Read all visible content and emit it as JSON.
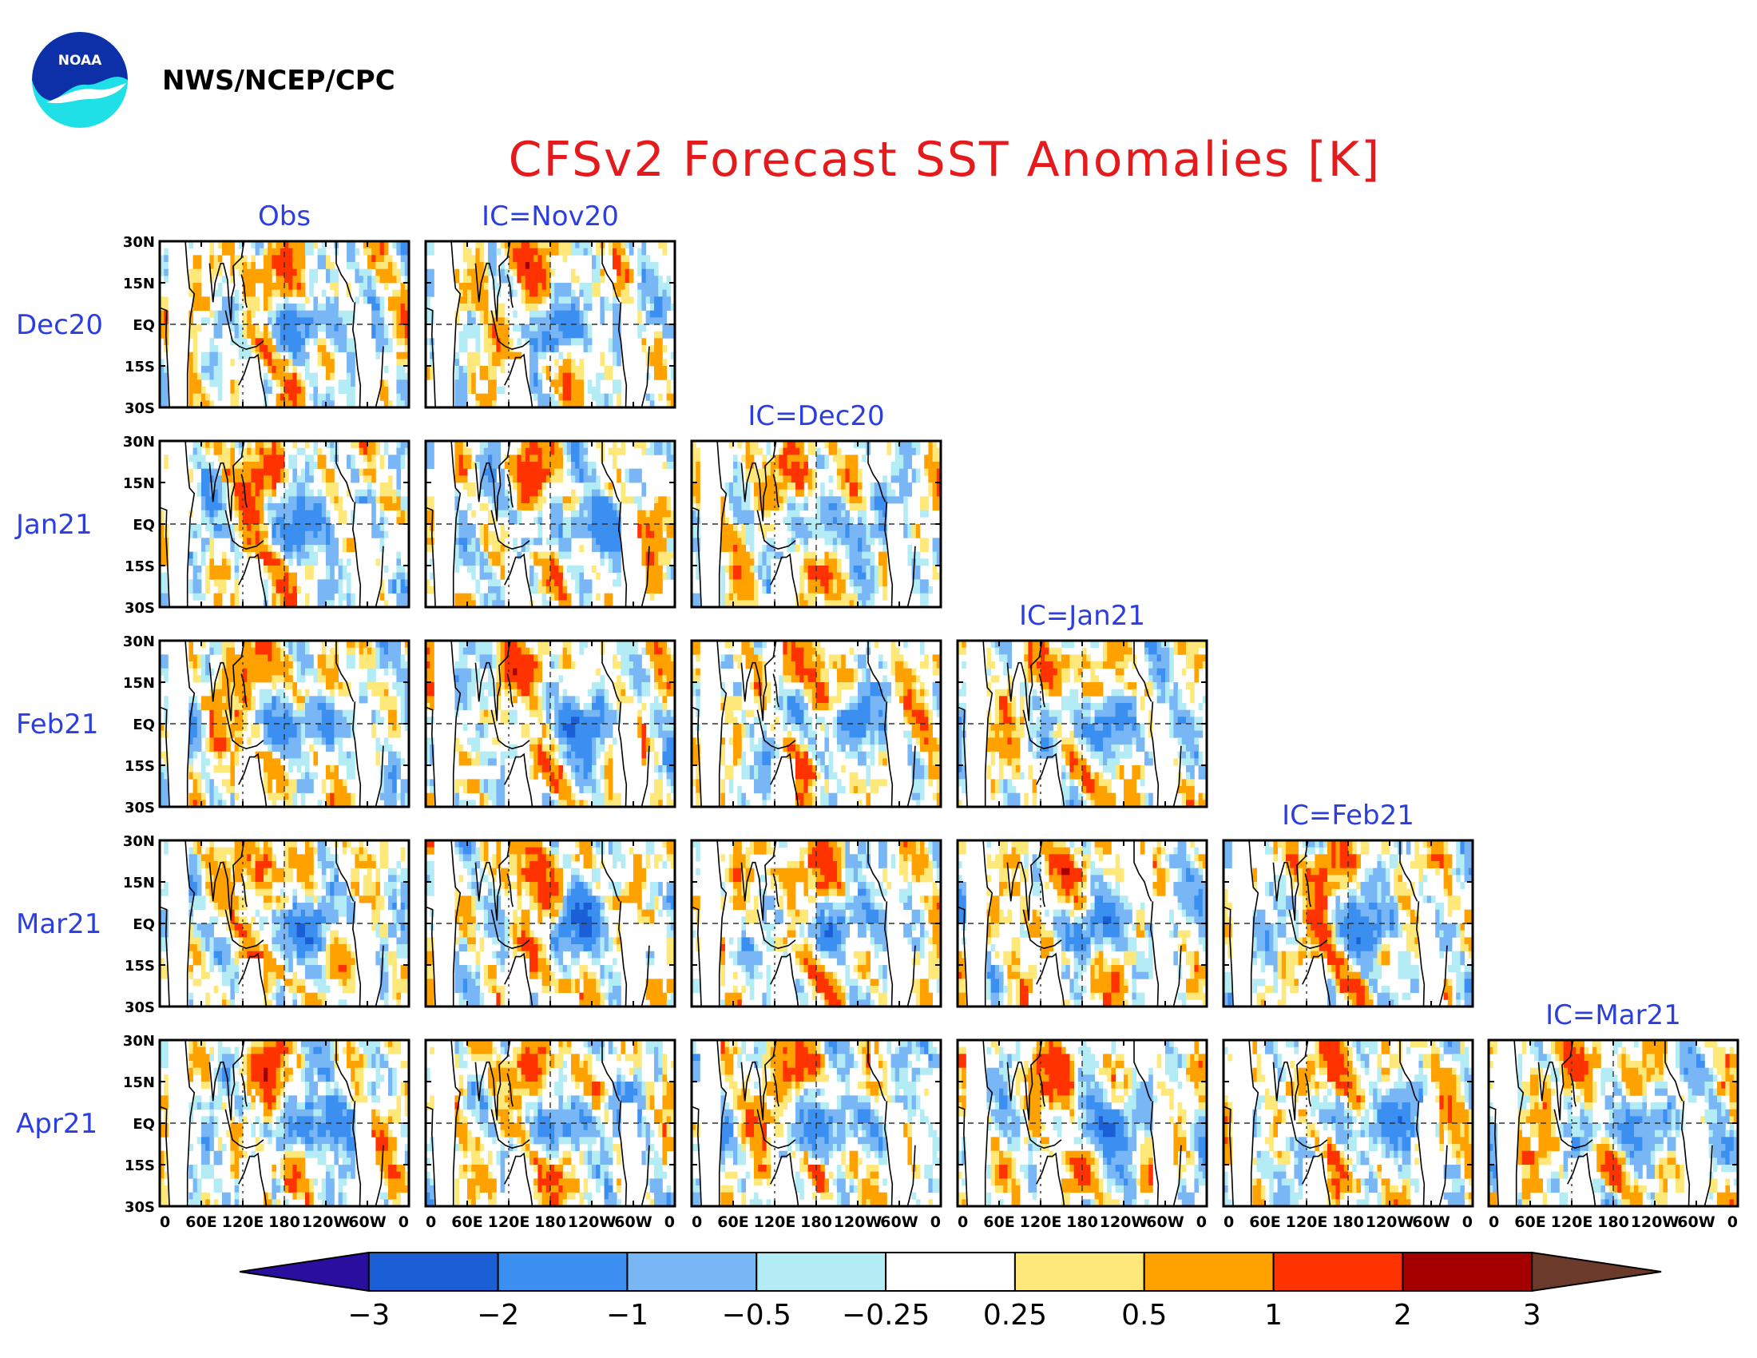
{
  "header": {
    "logo_text": "NOAA",
    "agency": "NWS/NCEP/CPC",
    "title": "CFSv2 Forecast SST Anomalies [K]"
  },
  "colors": {
    "title": "#e41a1c",
    "labels": "#2b3fe0",
    "logo_outer": "#1ee0e6",
    "logo_inner": "#0d2fa8"
  },
  "chart_data": {
    "type": "heatmap",
    "title": "CFSv2 Forecast SST Anomalies [K]",
    "variable": "SST anomaly",
    "units": "K",
    "columns": [
      "Obs",
      "IC=Nov20",
      "IC=Dec20",
      "IC=Jan21",
      "IC=Feb21",
      "IC=Mar21"
    ],
    "rows": [
      "Dec20",
      "Jan21",
      "Feb21",
      "Mar21",
      "Apr21"
    ],
    "panels": [
      {
        "row": 0,
        "col": 0,
        "id": "obs-dec20"
      },
      {
        "row": 0,
        "col": 1,
        "id": "nov20-dec20"
      },
      {
        "row": 1,
        "col": 0,
        "id": "obs-jan21"
      },
      {
        "row": 1,
        "col": 1,
        "id": "nov20-jan21"
      },
      {
        "row": 1,
        "col": 2,
        "id": "dec20-jan21"
      },
      {
        "row": 2,
        "col": 0,
        "id": "obs-feb21"
      },
      {
        "row": 2,
        "col": 1,
        "id": "nov20-feb21"
      },
      {
        "row": 2,
        "col": 2,
        "id": "dec20-feb21"
      },
      {
        "row": 2,
        "col": 3,
        "id": "jan21-feb21"
      },
      {
        "row": 3,
        "col": 0,
        "id": "obs-mar21"
      },
      {
        "row": 3,
        "col": 1,
        "id": "nov20-mar21"
      },
      {
        "row": 3,
        "col": 2,
        "id": "dec20-mar21"
      },
      {
        "row": 3,
        "col": 3,
        "id": "jan21-mar21"
      },
      {
        "row": 3,
        "col": 4,
        "id": "feb21-mar21"
      },
      {
        "row": 4,
        "col": 0,
        "id": "obs-apr21"
      },
      {
        "row": 4,
        "col": 1,
        "id": "nov20-apr21"
      },
      {
        "row": 4,
        "col": 2,
        "id": "dec20-apr21"
      },
      {
        "row": 4,
        "col": 3,
        "id": "jan21-apr21"
      },
      {
        "row": 4,
        "col": 4,
        "id": "feb21-apr21"
      },
      {
        "row": 4,
        "col": 5,
        "id": "mar21-apr21"
      }
    ],
    "lat_range": [
      -30,
      30
    ],
    "lon_range": [
      0,
      360
    ],
    "lat_ticks": [
      "30N",
      "15N",
      "EQ",
      "15S",
      "30S"
    ],
    "lon_ticks": [
      "0",
      "60E",
      "120E",
      "180",
      "120W",
      "60W",
      "0"
    ],
    "colorbar": {
      "levels": [
        "-3",
        "-2",
        "-1",
        "-0.5",
        "-0.25",
        "0.25",
        "0.5",
        "1",
        "2",
        "3"
      ],
      "colors": [
        "#2a0f9e",
        "#1a5fd6",
        "#3a8ff0",
        "#78b6f5",
        "#b4ecf6",
        "#ffffff",
        "#ffe87a",
        "#ffa200",
        "#ff3300",
        "#a50000",
        "#6b3a2a"
      ]
    }
  }
}
